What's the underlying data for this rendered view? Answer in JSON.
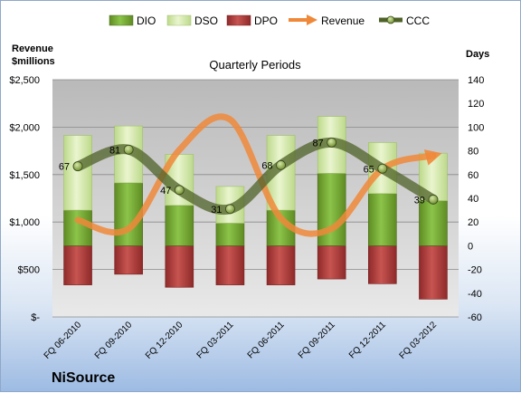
{
  "chart_data": {
    "type": "bar",
    "title": "Quarterly Periods",
    "company": "NiSource",
    "y_left_label": "Revenue\n$millions",
    "y_right_label": "Days",
    "y_left_ticks": [
      "$-",
      "$500",
      "$1,000",
      "$1,500",
      "$2,000",
      "$2,500"
    ],
    "y_left_range": [
      0,
      2500
    ],
    "y_right_ticks": [
      "-60",
      "-40",
      "-20",
      "0",
      "20",
      "40",
      "60",
      "80",
      "100",
      "120",
      "140"
    ],
    "y_right_range": [
      -60,
      140
    ],
    "categories": [
      "FQ 06-2010",
      "FQ 09-2010",
      "FQ 12-2010",
      "FQ 03-2011",
      "FQ 06-2011",
      "FQ 09-2011",
      "FQ 12-2011",
      "FQ 03-2012"
    ],
    "legend": [
      "DIO",
      "DSO",
      "DPO",
      "Revenue",
      "CCC"
    ],
    "legend_position": "top",
    "grid": true,
    "series": [
      {
        "name": "DIO",
        "values": [
          30,
          53,
          34,
          19,
          30,
          61,
          44,
          38
        ],
        "color": "#7fb33a"
      },
      {
        "name": "DSO",
        "values": [
          63,
          48,
          43,
          31,
          63,
          48,
          43,
          40
        ],
        "color": "#d4e8a0"
      },
      {
        "name": "DPO",
        "values": [
          -33,
          -24,
          -35,
          -33,
          -33,
          -28,
          -32,
          -45
        ],
        "color": "#c0504d"
      },
      {
        "name": "Revenue",
        "values": [
          1020,
          930,
          1760,
          2080,
          1040,
          930,
          1560,
          1700
        ],
        "color": "#f79646"
      },
      {
        "name": "CCC",
        "values": [
          67,
          81,
          47,
          31,
          68,
          87,
          65,
          39
        ],
        "color": "#4f6228"
      }
    ],
    "data_labels": [
      "67",
      "81",
      "47",
      "31",
      "68",
      "87",
      "65",
      "39"
    ]
  }
}
